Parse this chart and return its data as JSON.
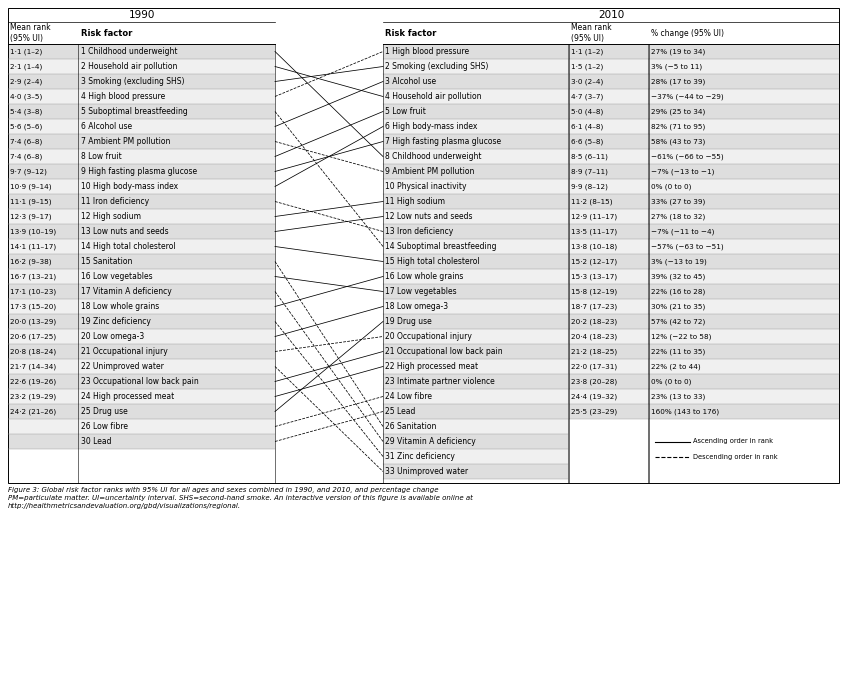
{
  "title_1990": "1990",
  "title_2010": "2010",
  "col_header_1990_rank": "Mean rank\n(95% UI)",
  "col_header_1990_factor": "Risk factor",
  "col_header_2010_factor": "Risk factor",
  "col_header_2010_rank": "Mean rank\n(95% UI)",
  "col_header_2010_pct": "% change (95% UI)",
  "rows_1990": [
    {
      "rank": "1·1 (1–2)",
      "factor": "1 Childhood underweight"
    },
    {
      "rank": "2·1 (1–4)",
      "factor": "2 Household air pollution"
    },
    {
      "rank": "2·9 (2–4)",
      "factor": "3 Smoking (excluding SHS)"
    },
    {
      "rank": "4·0 (3–5)",
      "factor": "4 High blood pressure"
    },
    {
      "rank": "5·4 (3–8)",
      "factor": "5 Suboptimal breastfeeding"
    },
    {
      "rank": "5·6 (5–6)",
      "factor": "6 Alcohol use"
    },
    {
      "rank": "7·4 (6–8)",
      "factor": "7 Ambient PM pollution"
    },
    {
      "rank": "7·4 (6–8)",
      "factor": "8 Low fruit"
    },
    {
      "rank": "9·7 (9–12)",
      "factor": "9 High fasting plasma glucose"
    },
    {
      "rank": "10·9 (9–14)",
      "factor": "10 High body-mass index"
    },
    {
      "rank": "11·1 (9–15)",
      "factor": "11 Iron deficiency"
    },
    {
      "rank": "12·3 (9–17)",
      "factor": "12 High sodium"
    },
    {
      "rank": "13·9 (10–19)",
      "factor": "13 Low nuts and seeds"
    },
    {
      "rank": "14·1 (11–17)",
      "factor": "14 High total cholesterol"
    },
    {
      "rank": "16·2 (9–38)",
      "factor": "15 Sanitation"
    },
    {
      "rank": "16·7 (13–21)",
      "factor": "16 Low vegetables"
    },
    {
      "rank": "17·1 (10–23)",
      "factor": "17 Vitamin A deficiency"
    },
    {
      "rank": "17·3 (15–20)",
      "factor": "18 Low whole grains"
    },
    {
      "rank": "20·0 (13–29)",
      "factor": "19 Zinc deficiency"
    },
    {
      "rank": "20·6 (17–25)",
      "factor": "20 Low omega-3"
    },
    {
      "rank": "20·8 (18–24)",
      "factor": "21 Occupational injury"
    },
    {
      "rank": "21·7 (14–34)",
      "factor": "22 Unimproved water"
    },
    {
      "rank": "22·6 (19–26)",
      "factor": "23 Occupational low back pain"
    },
    {
      "rank": "23·2 (19–29)",
      "factor": "24 High processed meat"
    },
    {
      "rank": "24·2 (21–26)",
      "factor": "25 Drug use"
    },
    {
      "rank": "",
      "factor": "26 Low fibre"
    },
    {
      "rank": "",
      "factor": "30 Lead"
    }
  ],
  "rows_2010": [
    {
      "factor": "1 High blood pressure",
      "rank": "1·1 (1–2)",
      "pct": "27% (19 to 34)"
    },
    {
      "factor": "2 Smoking (excluding SHS)",
      "rank": "1·5 (1–2)",
      "pct": "3% (−5 to 11)"
    },
    {
      "factor": "3 Alcohol use",
      "rank": "3·0 (2–4)",
      "pct": "28% (17 to 39)"
    },
    {
      "factor": "4 Household air pollution",
      "rank": "4·7 (3–7)",
      "pct": "−37% (−44 to −29)"
    },
    {
      "factor": "5 Low fruit",
      "rank": "5·0 (4–8)",
      "pct": "29% (25 to 34)"
    },
    {
      "factor": "6 High body-mass index",
      "rank": "6·1 (4–8)",
      "pct": "82% (71 to 95)"
    },
    {
      "factor": "7 High fasting plasma glucose",
      "rank": "6·6 (5–8)",
      "pct": "58% (43 to 73)"
    },
    {
      "factor": "8 Childhood underweight",
      "rank": "8·5 (6–11)",
      "pct": "−61% (−66 to −55)"
    },
    {
      "factor": "9 Ambient PM pollution",
      "rank": "8·9 (7–11)",
      "pct": "−7% (−13 to −1)"
    },
    {
      "factor": "10 Physical inactivity",
      "rank": "9·9 (8–12)",
      "pct": "0% (0 to 0)"
    },
    {
      "factor": "11 High sodium",
      "rank": "11·2 (8–15)",
      "pct": "33% (27 to 39)"
    },
    {
      "factor": "12 Low nuts and seeds",
      "rank": "12·9 (11–17)",
      "pct": "27% (18 to 32)"
    },
    {
      "factor": "13 Iron deficiency",
      "rank": "13·5 (11–17)",
      "pct": "−7% (−11 to −4)"
    },
    {
      "factor": "14 Suboptimal breastfeeding",
      "rank": "13·8 (10–18)",
      "pct": "−57% (−63 to −51)"
    },
    {
      "factor": "15 High total cholesterol",
      "rank": "15·2 (12–17)",
      "pct": "3% (−13 to 19)"
    },
    {
      "factor": "16 Low whole grains",
      "rank": "15·3 (13–17)",
      "pct": "39% (32 to 45)"
    },
    {
      "factor": "17 Low vegetables",
      "rank": "15·8 (12–19)",
      "pct": "22% (16 to 28)"
    },
    {
      "factor": "18 Low omega-3",
      "rank": "18·7 (17–23)",
      "pct": "30% (21 to 35)"
    },
    {
      "factor": "19 Drug use",
      "rank": "20·2 (18–23)",
      "pct": "57% (42 to 72)"
    },
    {
      "factor": "20 Occupational injury",
      "rank": "20·4 (18–23)",
      "pct": "12% (−22 to 58)"
    },
    {
      "factor": "21 Occupational low back pain",
      "rank": "21·2 (18–25)",
      "pct": "22% (11 to 35)"
    },
    {
      "factor": "22 High processed meat",
      "rank": "22·0 (17–31)",
      "pct": "22% (2 to 44)"
    },
    {
      "factor": "23 Intimate partner violence",
      "rank": "23·8 (20–28)",
      "pct": "0% (0 to 0)"
    },
    {
      "factor": "24 Low fibre",
      "rank": "24·4 (19–32)",
      "pct": "23% (13 to 33)"
    },
    {
      "factor": "25 Lead",
      "rank": "25·5 (23–29)",
      "pct": "160% (143 to 176)"
    },
    {
      "factor": "26 Sanitation",
      "rank": "",
      "pct": ""
    },
    {
      "factor": "29 Vitamin A deficiency",
      "rank": "",
      "pct": ""
    },
    {
      "factor": "31 Zinc deficiency",
      "rank": "",
      "pct": ""
    },
    {
      "factor": "33 Unimproved water",
      "rank": "",
      "pct": ""
    }
  ],
  "connections": [
    [
      0,
      7,
      "solid"
    ],
    [
      1,
      3,
      "solid"
    ],
    [
      2,
      1,
      "solid"
    ],
    [
      3,
      0,
      "dashed"
    ],
    [
      4,
      13,
      "dashed"
    ],
    [
      5,
      2,
      "solid"
    ],
    [
      6,
      8,
      "dashed"
    ],
    [
      7,
      4,
      "solid"
    ],
    [
      8,
      6,
      "solid"
    ],
    [
      9,
      5,
      "solid"
    ],
    [
      10,
      12,
      "dashed"
    ],
    [
      11,
      10,
      "solid"
    ],
    [
      12,
      11,
      "solid"
    ],
    [
      13,
      14,
      "solid"
    ],
    [
      14,
      25,
      "dashed"
    ],
    [
      15,
      16,
      "solid"
    ],
    [
      16,
      26,
      "dashed"
    ],
    [
      17,
      15,
      "solid"
    ],
    [
      18,
      27,
      "dashed"
    ],
    [
      19,
      17,
      "solid"
    ],
    [
      20,
      19,
      "dashed"
    ],
    [
      21,
      28,
      "dashed"
    ],
    [
      22,
      20,
      "solid"
    ],
    [
      23,
      21,
      "solid"
    ],
    [
      24,
      18,
      "solid"
    ],
    [
      25,
      23,
      "dashed"
    ],
    [
      26,
      24,
      "dashed"
    ]
  ],
  "bg_color_odd": "#dedede",
  "bg_color_even": "#f0f0f0",
  "caption": "Figure 3: Global risk factor ranks with 95% UI for all ages and sexes combined in 1990, and 2010, and percentage change\nPM=particulate matter. UI=uncertainty interval. SHS=second-hand smoke. An interactive version of this figure is available online at\nhttp://healthmetricsandevaluation.org/gbd/visualizations/regional."
}
